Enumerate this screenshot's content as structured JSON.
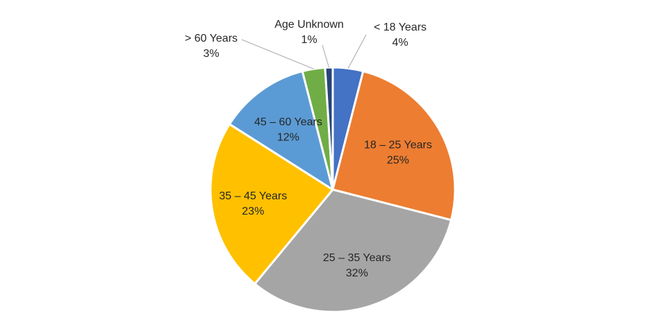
{
  "chart_data": {
    "type": "pie",
    "title": "",
    "start_angle_deg": 0,
    "direction": "clockwise",
    "legend": "none",
    "slices": [
      {
        "label": "< 18 Years",
        "value": 4,
        "value_label": "4%",
        "color": "#4472C4",
        "name": "slice-under-18"
      },
      {
        "label": "18 – 25 Years",
        "value": 25,
        "value_label": "25%",
        "color": "#ED7D31",
        "name": "slice-18-25"
      },
      {
        "label": "25 – 35 Years",
        "value": 32,
        "value_label": "32%",
        "color": "#A5A5A5",
        "name": "slice-25-35"
      },
      {
        "label": "35 – 45 Years",
        "value": 23,
        "value_label": "23%",
        "color": "#FFC000",
        "name": "slice-35-45"
      },
      {
        "label": "45 – 60 Years",
        "value": 12,
        "value_label": "12%",
        "color": "#5B9BD5",
        "name": "slice-45-60"
      },
      {
        "label": "> 60 Years",
        "value": 3,
        "value_label": "3%",
        "color": "#70AD47",
        "name": "slice-over-60"
      },
      {
        "label": "Age Unknown",
        "value": 1,
        "value_label": "1%",
        "color": "#264478",
        "name": "slice-age-unknown"
      }
    ]
  }
}
